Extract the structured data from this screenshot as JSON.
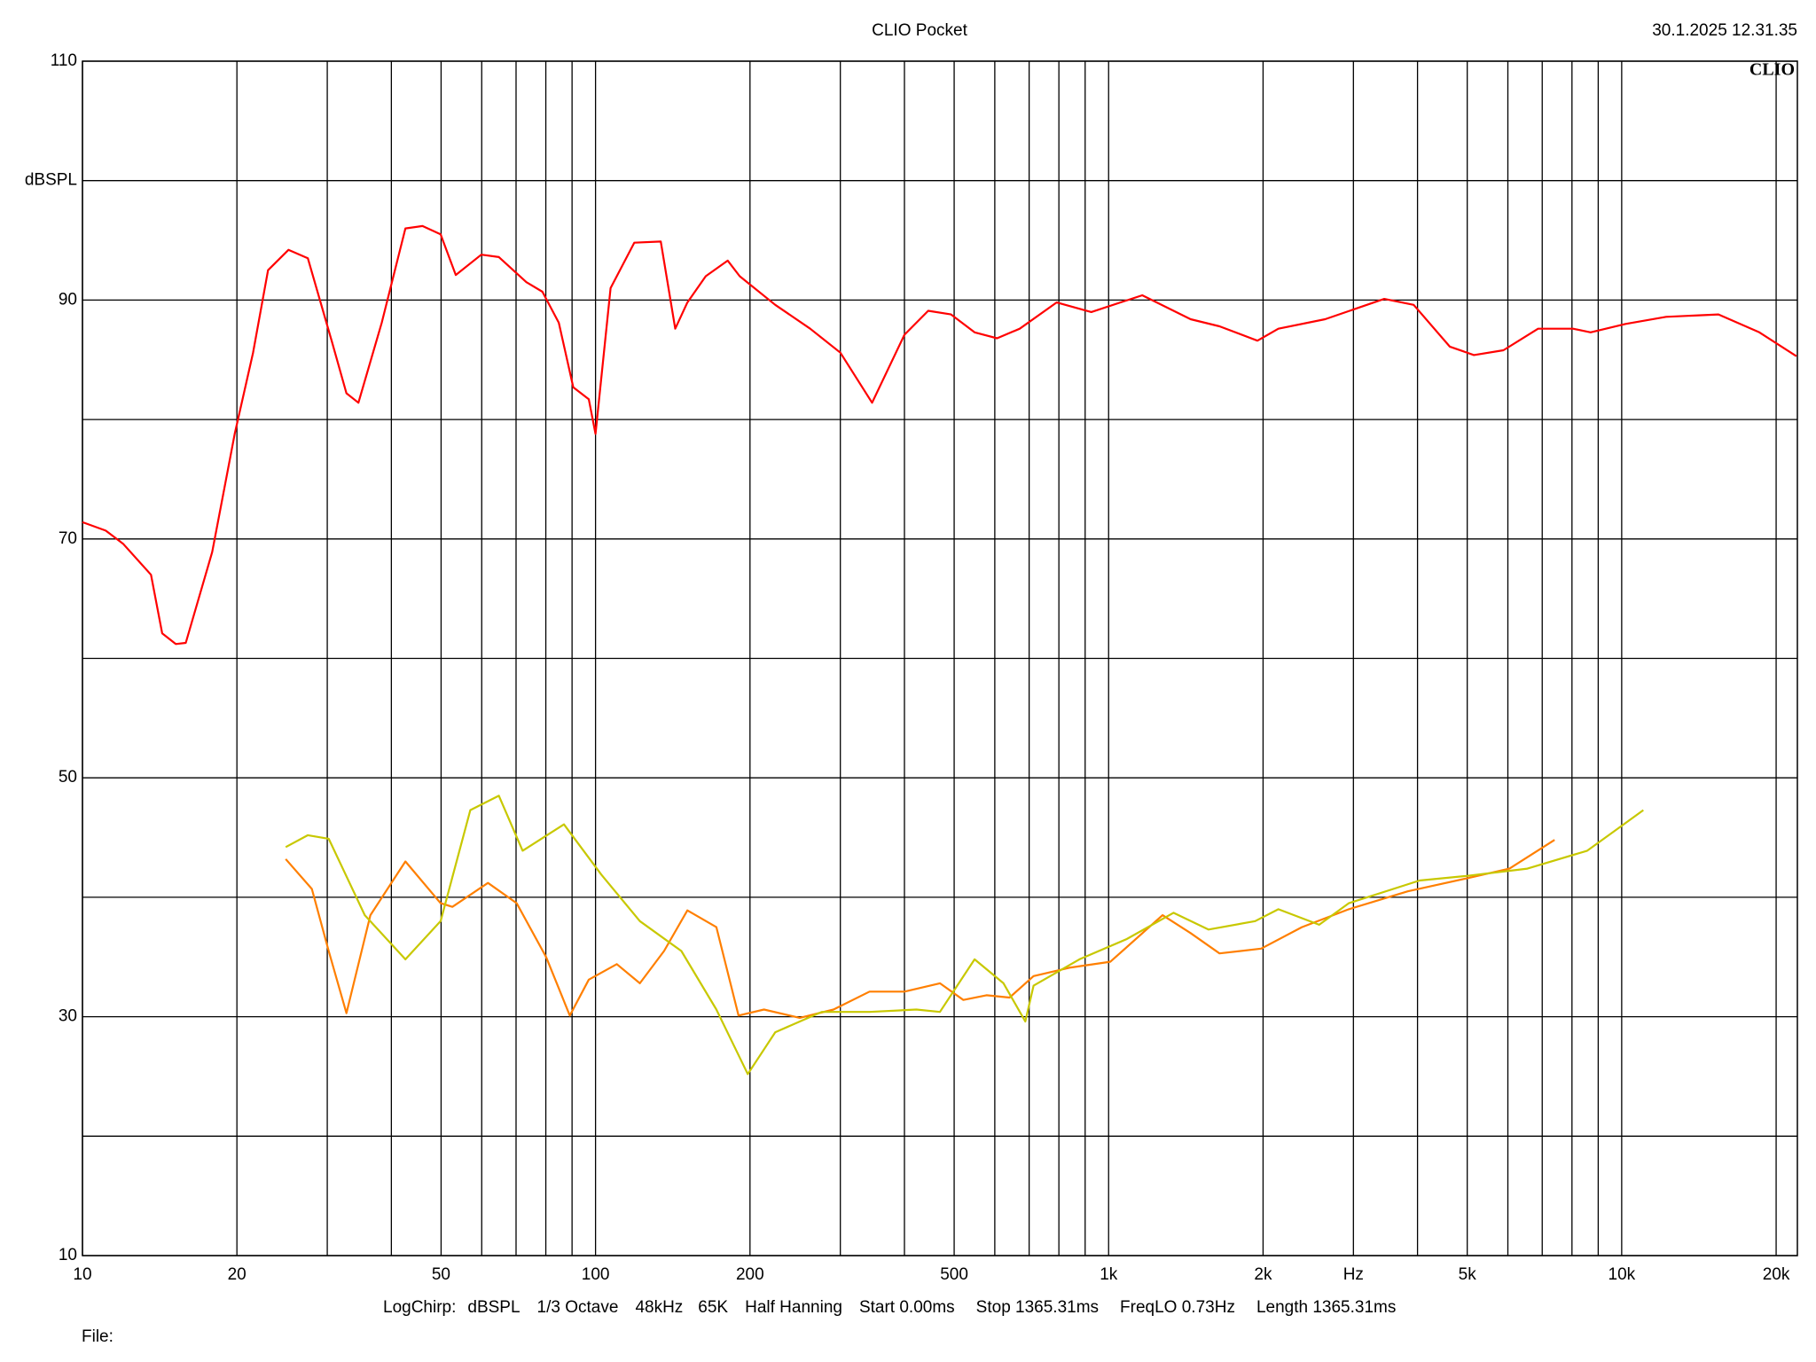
{
  "chart_data": {
    "type": "line",
    "title": "CLIO Pocket",
    "timestamp": "30.1.2025 12.31.35",
    "logo": "CLIO",
    "ylabel": "dBSPL",
    "xlabel": "Hz",
    "xscale": "log",
    "grid": true,
    "xlim": [
      10,
      22000
    ],
    "ylim": [
      10,
      110
    ],
    "xticks": [
      10,
      20,
      50,
      100,
      200,
      500,
      {
        "value": 1000,
        "label": "1k"
      },
      {
        "value": 2000,
        "label": "2k"
      },
      {
        "value": 5000,
        "label": "5k"
      },
      {
        "value": 10000,
        "label": "10k"
      },
      {
        "value": 20000,
        "label": "20k"
      }
    ],
    "xminor": [
      30,
      40,
      60,
      70,
      80,
      90,
      300,
      400,
      600,
      700,
      800,
      900,
      3000,
      4000,
      6000,
      7000,
      8000,
      9000
    ],
    "yticks": [
      10,
      30,
      50,
      70,
      90,
      110
    ],
    "yminor": [
      20,
      40,
      60,
      80,
      100
    ],
    "series": [
      {
        "color": "#ff0000",
        "x": [
          10,
          11.1,
          12.0,
          13.6,
          14.3,
          15.2,
          15.9,
          17.9,
          19.8,
          21.5,
          23.0,
          25.2,
          27.5,
          30.6,
          32.7,
          34.5,
          38.3,
          42.6,
          46.0,
          49.9,
          53.4,
          59.9,
          64.8,
          73.3,
          78.8,
          84.8,
          90.5,
          97.0,
          100,
          107,
          119,
          134,
          143,
          151,
          164,
          181,
          191,
          224,
          262,
          300,
          346,
          400,
          445,
          493,
          548,
          606,
          671,
          792,
          925,
          1163,
          1445,
          1645,
          1950,
          2142,
          2642,
          3445,
          3932,
          4624,
          5152,
          5882,
          6872,
          8040,
          8697,
          10180,
          12210,
          15440,
          18550,
          21900
        ],
        "values": [
          71.4,
          70.7,
          69.6,
          67.0,
          62.1,
          61.2,
          61.3,
          68.9,
          78.8,
          85.6,
          92.5,
          94.2,
          93.5,
          86.6,
          82.2,
          81.4,
          88.1,
          96.0,
          96.2,
          95.5,
          92.1,
          93.8,
          93.6,
          91.5,
          90.7,
          88.1,
          82.7,
          81.7,
          78.8,
          91.0,
          94.8,
          94.9,
          87.6,
          89.8,
          92.0,
          93.3,
          92.0,
          89.6,
          87.6,
          85.6,
          81.4,
          87.1,
          89.1,
          88.8,
          87.3,
          86.8,
          87.6,
          89.8,
          89.0,
          90.4,
          88.4,
          87.8,
          86.6,
          87.6,
          88.4,
          90.1,
          89.6,
          86.1,
          85.4,
          85.8,
          87.6,
          87.6,
          87.3,
          88.0,
          88.6,
          88.8,
          87.3,
          85.3
        ]
      },
      {
        "color": "#ff7f00",
        "x": [
          24.9,
          28.0,
          30.2,
          32.7,
          36.4,
          42.6,
          49.9,
          52.6,
          61.7,
          70.2,
          80.1,
          89.1,
          97.0,
          110,
          122,
          136,
          151,
          172,
          190,
          213,
          250,
          291,
          342,
          400,
          469,
          521,
          578,
          641,
          714,
          838,
          1008,
          1274,
          1445,
          1645,
          1983,
          2381,
          2938,
          3828,
          5012,
          6042,
          7401
        ],
        "values": [
          43.2,
          40.7,
          35.5,
          30.3,
          38.5,
          43.0,
          39.5,
          39.2,
          41.2,
          39.5,
          35.0,
          30.1,
          33.1,
          34.4,
          32.8,
          35.5,
          38.9,
          37.5,
          30.1,
          30.6,
          29.9,
          30.6,
          32.1,
          32.1,
          32.8,
          31.4,
          31.8,
          31.6,
          33.4,
          34.1,
          34.6,
          38.5,
          37.0,
          35.3,
          35.7,
          37.5,
          39.0,
          40.5,
          41.6,
          42.4,
          44.8
        ]
      },
      {
        "color": "#c8c800",
        "x": [
          24.9,
          27.5,
          30.2,
          35.5,
          42.6,
          49.9,
          57.0,
          64.8,
          72.1,
          86.8,
          102.6,
          122,
          147,
          172,
          198,
          224,
          276,
          342,
          422,
          469,
          548,
          624,
          688,
          714,
          877,
          1085,
          1338,
          1565,
          1930,
          2142,
          2573,
          2938,
          4036,
          5012,
          6548,
          8567,
          9942,
          11020
        ],
        "values": [
          44.2,
          45.2,
          44.9,
          38.5,
          34.8,
          38.0,
          47.3,
          48.5,
          43.9,
          46.1,
          41.9,
          38.0,
          35.5,
          30.6,
          25.2,
          28.7,
          30.4,
          30.4,
          30.6,
          30.4,
          34.8,
          32.8,
          29.6,
          32.6,
          34.8,
          36.5,
          38.7,
          37.3,
          38.0,
          39.0,
          37.7,
          39.5,
          41.4,
          41.8,
          42.4,
          43.9,
          45.9,
          47.3
        ]
      }
    ],
    "footer": [
      "LogChirp:",
      "dBSPL",
      "1/3 Octave",
      "48kHz",
      "65K",
      "Half Hanning",
      "Start 0.00ms",
      "Stop 1365.31ms",
      "FreqLO 0.73Hz",
      "Length 1365.31ms"
    ],
    "file_label": "File:"
  }
}
